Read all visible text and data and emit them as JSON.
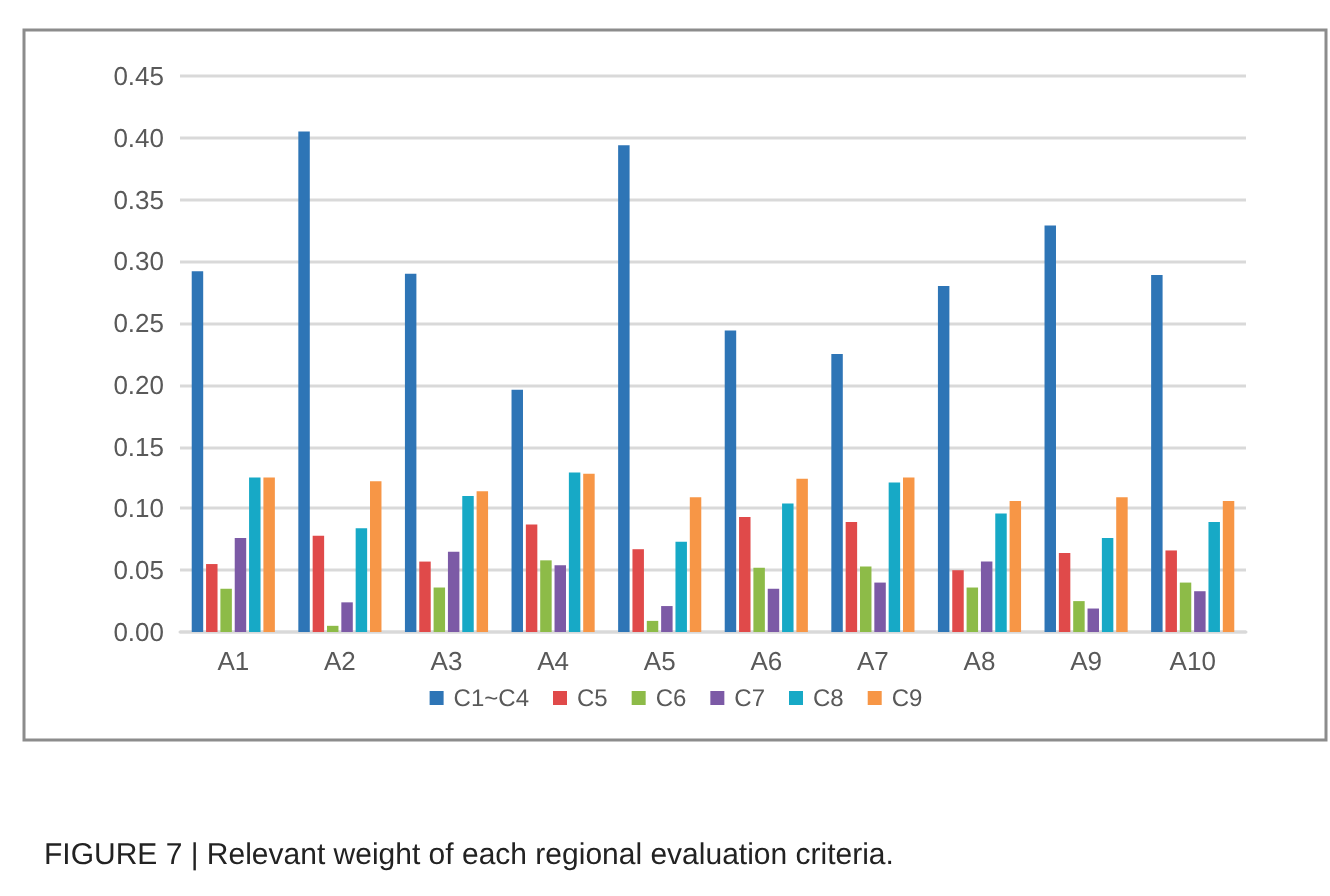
{
  "chart_data": {
    "type": "bar",
    "categories": [
      "A1",
      "A2",
      "A3",
      "A4",
      "A5",
      "A6",
      "A7",
      "A8",
      "A9",
      "A10"
    ],
    "series": [
      {
        "name": "C1~C4",
        "color": "#2e75b6",
        "values": [
          0.292,
          0.405,
          0.29,
          0.196,
          0.394,
          0.244,
          0.225,
          0.28,
          0.329,
          0.289
        ]
      },
      {
        "name": "C5",
        "color": "#e04a4a",
        "values": [
          0.055,
          0.078,
          0.057,
          0.087,
          0.067,
          0.093,
          0.089,
          0.05,
          0.064,
          0.066
        ]
      },
      {
        "name": "C6",
        "color": "#8dbb48",
        "values": [
          0.035,
          0.005,
          0.036,
          0.058,
          0.009,
          0.052,
          0.053,
          0.036,
          0.025,
          0.04
        ]
      },
      {
        "name": "C7",
        "color": "#7c5aa6",
        "values": [
          0.076,
          0.024,
          0.065,
          0.054,
          0.021,
          0.035,
          0.04,
          0.057,
          0.019,
          0.033
        ]
      },
      {
        "name": "C8",
        "color": "#17a9c6",
        "values": [
          0.125,
          0.084,
          0.11,
          0.129,
          0.073,
          0.104,
          0.121,
          0.096,
          0.076,
          0.089
        ]
      },
      {
        "name": "C9",
        "color": "#f79646",
        "values": [
          0.125,
          0.122,
          0.114,
          0.128,
          0.109,
          0.124,
          0.125,
          0.106,
          0.109,
          0.106
        ]
      }
    ],
    "ylim": [
      0,
      0.45
    ],
    "yticks": [
      {
        "value": 0,
        "label": "0.00"
      },
      {
        "value": 0.05,
        "label": "0.05"
      },
      {
        "value": 0.1,
        "label": "0.10"
      },
      {
        "value": 0.15,
        "label": "0.15"
      },
      {
        "value": 0.2,
        "label": "0.20"
      },
      {
        "value": 0.25,
        "label": "0.25"
      },
      {
        "value": 0.3,
        "label": "0.30"
      },
      {
        "value": 0.35,
        "label": "0.35"
      },
      {
        "value": 0.4,
        "label": "0.40"
      },
      {
        "value": 0.45,
        "label": "0.45"
      }
    ],
    "grid": "y",
    "legend": "bottom",
    "annotations": [
      "FIGURE 7 | Relevant weight of each regional evaluation criteria."
    ]
  }
}
